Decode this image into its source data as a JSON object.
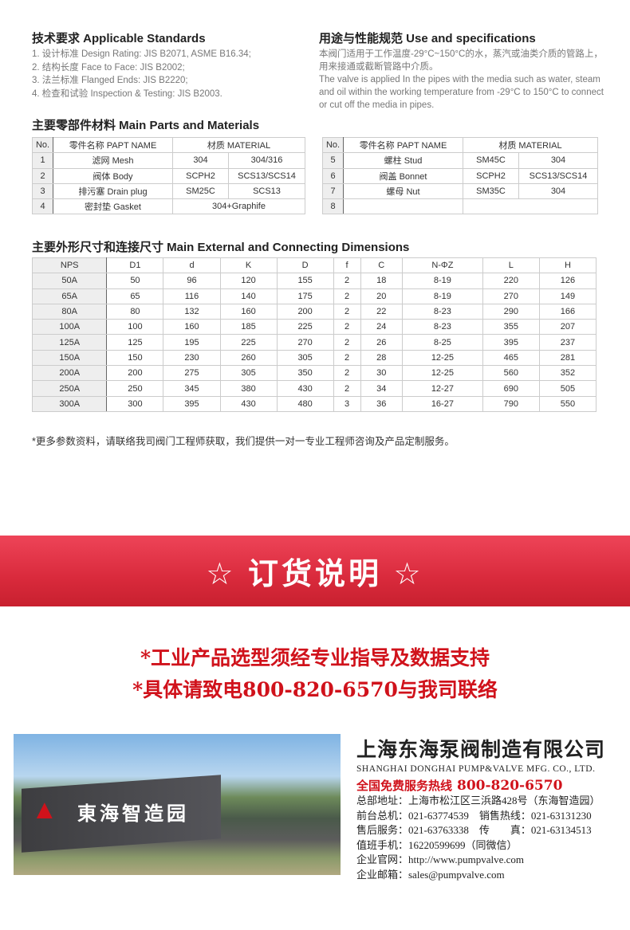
{
  "standards": {
    "title": "技术要求 Applicable Standards",
    "items": [
      "1. 设计标准 Design Rating: JIS B2071, ASME B16.34;",
      "2. 结构长度 Face to Face: JIS B2002;",
      "3. 法兰标准 Flanged Ends: JIS B2220;",
      "4. 检查和试验 Inspection & Testing: JIS B2003."
    ]
  },
  "use": {
    "title": "用途与性能规范 Use and specifications",
    "cn": "本阀门适用于工作温度-29°C~150°C的水，蒸汽或油类介质的管路上，用来接通或截断管路中介质。",
    "en": "The valve is applied In the pipes with the media such as water, steam and oil within the working temperature from -29°C to 150°C to connect or cut off the media in pipes."
  },
  "parts": {
    "title": "主要零部件材料 Main Parts and Materials",
    "headers": [
      "No.",
      "零件名称 PAPT NAME",
      "材质 MATERIAL"
    ],
    "left": [
      [
        "1",
        "滤网 Mesh",
        "304",
        "304/316"
      ],
      [
        "2",
        "阀体 Body",
        "SCPH2",
        "SCS13/SCS14"
      ],
      [
        "3",
        "排污塞 Drain plug",
        "SM25C",
        "SCS13"
      ],
      [
        "4",
        "密封垫 Gasket",
        "304+Graphife"
      ]
    ],
    "right": [
      [
        "5",
        "螺柱 Stud",
        "SM45C",
        "304"
      ],
      [
        "6",
        "阀盖 Bonnet",
        "SCPH2",
        "SCS13/SCS14"
      ],
      [
        "7",
        "螺母 Nut",
        "SM35C",
        "304"
      ],
      [
        "8",
        "",
        ""
      ]
    ]
  },
  "dims": {
    "title": "主要外形尺寸和连接尺寸 Main External and Connecting Dimensions",
    "headers": [
      "NPS",
      "D1",
      "d",
      "K",
      "D",
      "f",
      "C",
      "N-ΦZ",
      "L",
      "H"
    ],
    "rows": [
      [
        "50A",
        "50",
        "96",
        "120",
        "155",
        "2",
        "18",
        "8-19",
        "220",
        "126"
      ],
      [
        "65A",
        "65",
        "116",
        "140",
        "175",
        "2",
        "20",
        "8-19",
        "270",
        "149"
      ],
      [
        "80A",
        "80",
        "132",
        "160",
        "200",
        "2",
        "22",
        "8-23",
        "290",
        "166"
      ],
      [
        "100A",
        "100",
        "160",
        "185",
        "225",
        "2",
        "24",
        "8-23",
        "355",
        "207"
      ],
      [
        "125A",
        "125",
        "195",
        "225",
        "270",
        "2",
        "26",
        "8-25",
        "395",
        "237"
      ],
      [
        "150A",
        "150",
        "230",
        "260",
        "305",
        "2",
        "28",
        "12-25",
        "465",
        "281"
      ],
      [
        "200A",
        "200",
        "275",
        "305",
        "350",
        "2",
        "30",
        "12-25",
        "560",
        "352"
      ],
      [
        "250A",
        "250",
        "345",
        "380",
        "430",
        "2",
        "34",
        "12-27",
        "690",
        "505"
      ],
      [
        "300A",
        "300",
        "395",
        "430",
        "480",
        "3",
        "36",
        "16-27",
        "790",
        "550"
      ]
    ]
  },
  "footnote": "*更多参数资料，请联络我司阀门工程师获取，我们提供一对一专业工程师咨询及产品定制服务。",
  "banner": {
    "title": "☆ 订货说明 ☆",
    "color": "#d92a3c"
  },
  "notes": [
    "*工业产品选型须经专业指导及数据支持",
    "*具体请致电800-820-6570与我司联络"
  ],
  "photo": {
    "sign": "東海智造园"
  },
  "company": {
    "cn": "上海东海泵阀制造有限公司",
    "en": "SHANGHAI DONGHAI PUMP&VALVE MFG. CO., LTD.",
    "hotline_label": "全国免费服务热线",
    "hotline": "800-820-6570",
    "lines": [
      "总部地址：上海市松江区三浜路428号（东海智造园）",
      "前台总机：021-63774539　销售热线：021-63131230",
      "售后服务：021-63763338　传　　真：021-63134513",
      "值班手机：16220599699（同微信）",
      "企业官网：http://www.pumpvalve.com",
      "企业邮箱：sales@pumpvalve.com"
    ]
  }
}
